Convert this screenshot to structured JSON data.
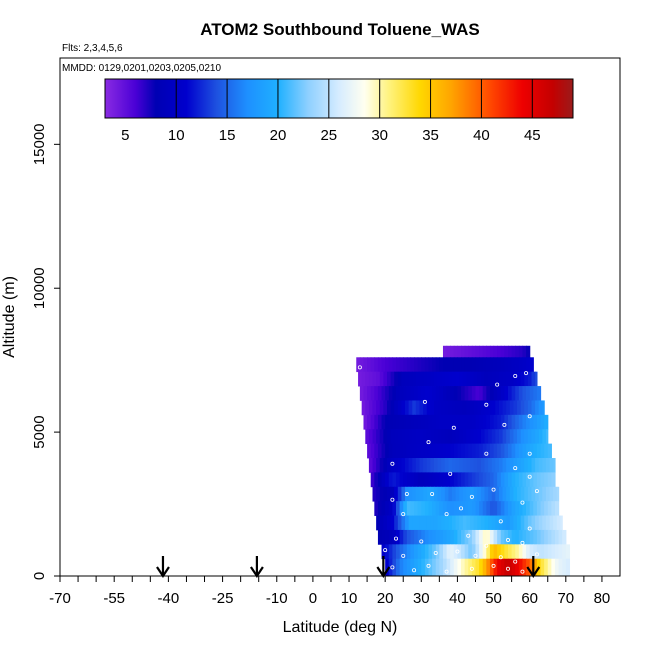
{
  "chart_data": {
    "type": "heatmap",
    "title": "ATOM2 Southbound Toluene_WAS",
    "flights_note": "Flts: 2,3,4,5,6",
    "dates_note": "MMDD: 0129,0201,0203,0205,0210",
    "xlabel": "Latitude (deg N)",
    "ylabel": "Altitude (m)",
    "xlim": [
      -70,
      85
    ],
    "ylim": [
      0,
      18000
    ],
    "x_ticks": [
      -70,
      -55,
      -40,
      -25,
      -10,
      0,
      10,
      20,
      30,
      40,
      50,
      60,
      70,
      80
    ],
    "x_minor_ticks": [
      -65,
      -60,
      -50,
      -45,
      -35,
      -30,
      -20,
      -15,
      -5,
      5,
      15,
      25,
      35,
      45,
      55,
      65,
      75
    ],
    "y_ticks": [
      0,
      5000,
      10000,
      15000
    ],
    "colorbar": {
      "min": 3,
      "max": 49,
      "ticks": [
        5,
        10,
        15,
        20,
        25,
        30,
        35,
        40,
        45
      ],
      "gridlines": [
        10,
        15,
        20,
        25,
        30,
        35,
        40,
        45
      ],
      "stops": [
        {
          "v": 3,
          "color": "#8a2be2"
        },
        {
          "v": 6,
          "color": "#4a00d6"
        },
        {
          "v": 8,
          "color": "#0000b3"
        },
        {
          "v": 11,
          "color": "#0000cd"
        },
        {
          "v": 14,
          "color": "#1e52e0"
        },
        {
          "v": 17,
          "color": "#1e90ff"
        },
        {
          "v": 20,
          "color": "#1fb0ff"
        },
        {
          "v": 23,
          "color": "#8fd0ff"
        },
        {
          "v": 26,
          "color": "#d6ecff"
        },
        {
          "v": 28.5,
          "color": "#fffff0"
        },
        {
          "v": 31,
          "color": "#fff27a"
        },
        {
          "v": 34,
          "color": "#ffd700"
        },
        {
          "v": 37,
          "color": "#ffa500"
        },
        {
          "v": 41,
          "color": "#ff4500"
        },
        {
          "v": 44,
          "color": "#ee0000"
        },
        {
          "v": 47,
          "color": "#c40000"
        },
        {
          "v": 49,
          "color": "#9b1b1b"
        }
      ]
    },
    "profile_arrows_lat": [
      -41.5,
      -15.5,
      19.5,
      61
    ],
    "rows": [
      {
        "alt_bottom": 7600,
        "alt_top": 8000,
        "lat_start": 36,
        "lat_end": 60,
        "knots": [
          [
            36,
            4
          ],
          [
            44,
            5
          ],
          [
            52,
            6
          ],
          [
            58,
            7
          ],
          [
            60,
            8
          ]
        ]
      },
      {
        "alt_bottom": 7100,
        "alt_top": 7600,
        "lat_start": 12,
        "lat_end": 61,
        "knots": [
          [
            12,
            4
          ],
          [
            20,
            6
          ],
          [
            28,
            7
          ],
          [
            36,
            8
          ],
          [
            44,
            8
          ],
          [
            52,
            9
          ],
          [
            58,
            10
          ],
          [
            61,
            11
          ]
        ]
      },
      {
        "alt_bottom": 6600,
        "alt_top": 7100,
        "lat_start": 12.5,
        "lat_end": 62,
        "knots": [
          [
            12.5,
            4
          ],
          [
            18,
            5
          ],
          [
            25,
            9
          ],
          [
            32,
            10
          ],
          [
            40,
            11
          ],
          [
            48,
            9
          ],
          [
            55,
            10
          ],
          [
            60,
            12
          ],
          [
            62,
            14
          ]
        ]
      },
      {
        "alt_bottom": 6100,
        "alt_top": 6600,
        "lat_start": 13,
        "lat_end": 63,
        "knots": [
          [
            13,
            4
          ],
          [
            18,
            6
          ],
          [
            24,
            9
          ],
          [
            32,
            11
          ],
          [
            40,
            8
          ],
          [
            46,
            6
          ],
          [
            52,
            10
          ],
          [
            58,
            14
          ],
          [
            63,
            16
          ]
        ]
      },
      {
        "alt_bottom": 5600,
        "alt_top": 6100,
        "lat_start": 13.5,
        "lat_end": 64,
        "knots": [
          [
            13.5,
            4
          ],
          [
            20,
            7
          ],
          [
            28,
            13
          ],
          [
            34,
            10
          ],
          [
            42,
            9
          ],
          [
            50,
            11
          ],
          [
            56,
            13
          ],
          [
            60,
            15
          ],
          [
            64,
            18
          ]
        ]
      },
      {
        "alt_bottom": 5100,
        "alt_top": 5600,
        "lat_start": 14,
        "lat_end": 65,
        "knots": [
          [
            14,
            4
          ],
          [
            20,
            8
          ],
          [
            28,
            9
          ],
          [
            36,
            10
          ],
          [
            44,
            10
          ],
          [
            52,
            12
          ],
          [
            58,
            16
          ],
          [
            62,
            18
          ],
          [
            65,
            20
          ]
        ]
      },
      {
        "alt_bottom": 4600,
        "alt_top": 5100,
        "lat_start": 14.5,
        "lat_end": 65,
        "knots": [
          [
            14.5,
            5
          ],
          [
            22,
            9
          ],
          [
            30,
            10
          ],
          [
            38,
            9
          ],
          [
            46,
            11
          ],
          [
            52,
            13
          ],
          [
            58,
            17
          ],
          [
            62,
            19
          ],
          [
            65,
            21
          ]
        ]
      },
      {
        "alt_bottom": 4100,
        "alt_top": 4600,
        "lat_start": 15,
        "lat_end": 66,
        "knots": [
          [
            15,
            5
          ],
          [
            22,
            9
          ],
          [
            30,
            10
          ],
          [
            38,
            11
          ],
          [
            46,
            12
          ],
          [
            52,
            14
          ],
          [
            58,
            18
          ],
          [
            62,
            20
          ],
          [
            66,
            21
          ]
        ]
      },
      {
        "alt_bottom": 3600,
        "alt_top": 4100,
        "lat_start": 15.5,
        "lat_end": 67,
        "knots": [
          [
            15.5,
            5
          ],
          [
            22,
            10
          ],
          [
            30,
            13
          ],
          [
            38,
            15
          ],
          [
            46,
            14
          ],
          [
            52,
            16
          ],
          [
            58,
            19
          ],
          [
            62,
            21
          ],
          [
            67,
            22
          ]
        ]
      },
      {
        "alt_bottom": 3100,
        "alt_top": 3600,
        "lat_start": 16,
        "lat_end": 67,
        "knots": [
          [
            16,
            6
          ],
          [
            22,
            12
          ],
          [
            30,
            9
          ],
          [
            38,
            11
          ],
          [
            44,
            13
          ],
          [
            50,
            15
          ],
          [
            56,
            20
          ],
          [
            62,
            22
          ],
          [
            67,
            23
          ]
        ]
      },
      {
        "alt_bottom": 2600,
        "alt_top": 3100,
        "lat_start": 16.5,
        "lat_end": 68,
        "knots": [
          [
            16.5,
            7
          ],
          [
            22,
            9
          ],
          [
            26,
            17
          ],
          [
            32,
            19
          ],
          [
            38,
            16
          ],
          [
            44,
            18
          ],
          [
            50,
            15
          ],
          [
            56,
            20
          ],
          [
            62,
            22
          ],
          [
            68,
            24
          ]
        ]
      },
      {
        "alt_bottom": 2100,
        "alt_top": 2600,
        "lat_start": 17,
        "lat_end": 68,
        "knots": [
          [
            17,
            7
          ],
          [
            22,
            10
          ],
          [
            26,
            21
          ],
          [
            32,
            20
          ],
          [
            38,
            17
          ],
          [
            44,
            18
          ],
          [
            50,
            14
          ],
          [
            56,
            19
          ],
          [
            62,
            22
          ],
          [
            68,
            25
          ]
        ]
      },
      {
        "alt_bottom": 1600,
        "alt_top": 2100,
        "lat_start": 17.5,
        "lat_end": 69,
        "knots": [
          [
            17.5,
            8
          ],
          [
            22,
            11
          ],
          [
            27,
            19
          ],
          [
            34,
            19
          ],
          [
            42,
            21
          ],
          [
            48,
            20
          ],
          [
            54,
            18
          ],
          [
            60,
            22
          ],
          [
            64,
            24
          ],
          [
            69,
            26
          ]
        ]
      },
      {
        "alt_bottom": 1100,
        "alt_top": 1600,
        "lat_start": 18,
        "lat_end": 70,
        "knots": [
          [
            18,
            8
          ],
          [
            22,
            9
          ],
          [
            26,
            14
          ],
          [
            32,
            17
          ],
          [
            38,
            19
          ],
          [
            44,
            23
          ],
          [
            48,
            30
          ],
          [
            52,
            22
          ],
          [
            56,
            20
          ],
          [
            62,
            22
          ],
          [
            66,
            24
          ],
          [
            70,
            26
          ]
        ]
      },
      {
        "alt_bottom": 600,
        "alt_top": 1100,
        "lat_start": 19,
        "lat_end": 71,
        "knots": [
          [
            19,
            10
          ],
          [
            23,
            14
          ],
          [
            28,
            18
          ],
          [
            34,
            22
          ],
          [
            38,
            27
          ],
          [
            41,
            25
          ],
          [
            44,
            22
          ],
          [
            48,
            30
          ],
          [
            50,
            36
          ],
          [
            53,
            33
          ],
          [
            57,
            30
          ],
          [
            60,
            26
          ],
          [
            63,
            25
          ],
          [
            67,
            26
          ],
          [
            71,
            27
          ]
        ]
      },
      {
        "alt_bottom": 0,
        "alt_top": 600,
        "lat_start": 20,
        "lat_end": 71,
        "knots": [
          [
            20,
            10
          ],
          [
            24,
            16
          ],
          [
            30,
            20
          ],
          [
            36,
            24
          ],
          [
            42,
            30
          ],
          [
            46,
            33
          ],
          [
            48,
            37
          ],
          [
            51,
            44
          ],
          [
            54,
            47
          ],
          [
            57,
            44
          ],
          [
            60,
            40
          ],
          [
            63,
            33
          ],
          [
            66,
            29
          ],
          [
            68,
            27
          ],
          [
            71,
            26
          ]
        ]
      }
    ],
    "sample_points": [
      [
        13,
        7250
      ],
      [
        51,
        6650
      ],
      [
        56,
        6950
      ],
      [
        59,
        7050
      ],
      [
        31,
        6050
      ],
      [
        48,
        5950
      ],
      [
        60,
        5550
      ],
      [
        53,
        5250
      ],
      [
        48,
        4250
      ],
      [
        60,
        4250
      ],
      [
        32,
        4650
      ],
      [
        39,
        5150
      ],
      [
        22,
        3900
      ],
      [
        38,
        3550
      ],
      [
        56,
        3750
      ],
      [
        60,
        3450
      ],
      [
        26,
        2850
      ],
      [
        22,
        2650
      ],
      [
        33,
        2850
      ],
      [
        44,
        2750
      ],
      [
        50,
        3000
      ],
      [
        62,
        2950
      ],
      [
        58,
        2550
      ],
      [
        25,
        2150
      ],
      [
        37,
        2150
      ],
      [
        41,
        2350
      ],
      [
        52,
        1900
      ],
      [
        60,
        1650
      ],
      [
        23,
        1300
      ],
      [
        30,
        1200
      ],
      [
        43,
        1400
      ],
      [
        48,
        1050
      ],
      [
        54,
        1250
      ],
      [
        58,
        1150
      ],
      [
        20,
        900
      ],
      [
        25,
        700
      ],
      [
        34,
        800
      ],
      [
        40,
        850
      ],
      [
        45,
        700
      ],
      [
        52,
        650
      ],
      [
        56,
        500
      ],
      [
        62,
        750
      ],
      [
        22,
        300
      ],
      [
        28,
        200
      ],
      [
        32,
        350
      ],
      [
        37,
        150
      ],
      [
        44,
        250
      ],
      [
        50,
        350
      ],
      [
        54,
        250
      ],
      [
        58,
        150
      ]
    ]
  }
}
